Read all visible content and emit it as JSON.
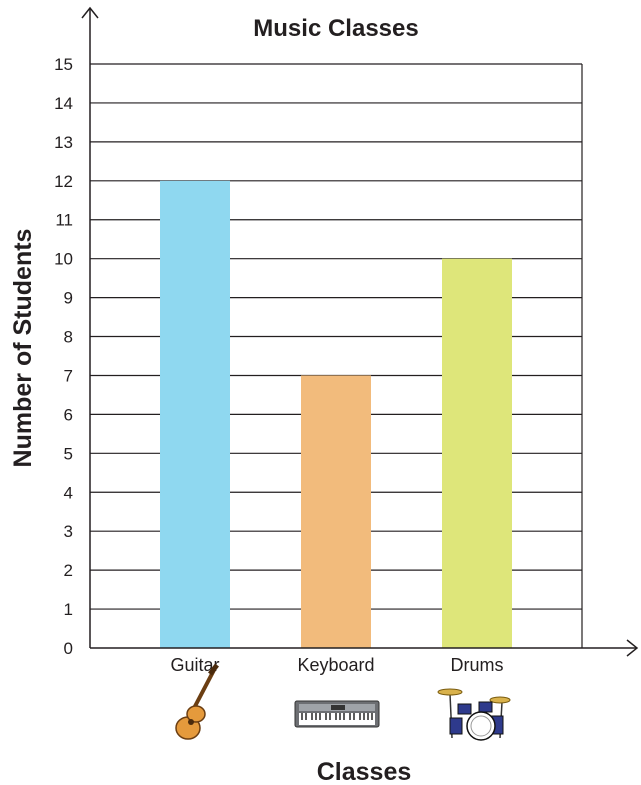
{
  "chart_data": {
    "type": "bar",
    "title": "Music Classes",
    "xlabel": "Classes",
    "ylabel": "Number of Students",
    "categories": [
      "Guitar",
      "Keyboard",
      "Drums"
    ],
    "values": [
      12,
      7,
      10
    ],
    "ylim": [
      0,
      15
    ],
    "yticks": [
      0,
      1,
      2,
      3,
      4,
      5,
      6,
      7,
      8,
      9,
      10,
      11,
      12,
      13,
      14,
      15
    ],
    "grid": true,
    "colors": [
      "#8fd8f0",
      "#f2bb7c",
      "#dee67a"
    ],
    "icons": [
      "guitar-icon",
      "keyboard-icon",
      "drum-kit-icon"
    ]
  }
}
